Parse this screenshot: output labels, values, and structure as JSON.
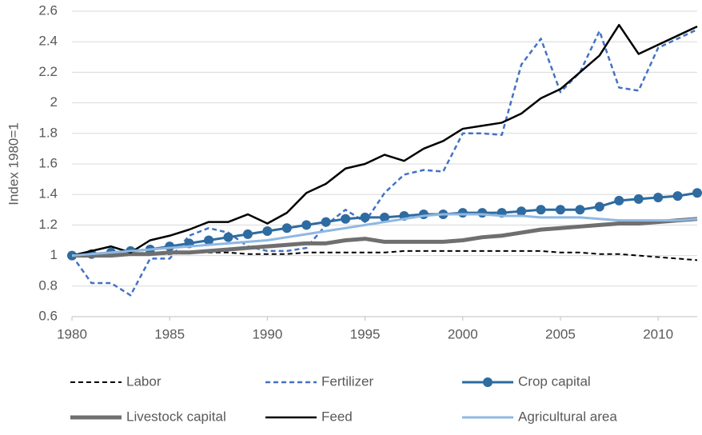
{
  "chart_data": {
    "type": "line",
    "y_label": "Index 1980=1",
    "x": [
      1980,
      1981,
      1982,
      1983,
      1984,
      1985,
      1986,
      1987,
      1988,
      1989,
      1990,
      1991,
      1992,
      1993,
      1994,
      1995,
      1996,
      1997,
      1998,
      1999,
      2000,
      2001,
      2002,
      2003,
      2004,
      2005,
      2006,
      2007,
      2008,
      2009,
      2010,
      2011,
      2012
    ],
    "xlim": [
      1980,
      2012
    ],
    "xticks": [
      1980,
      1985,
      1990,
      1995,
      2000,
      2005,
      2010
    ],
    "ylim": [
      0.6,
      2.6
    ],
    "yticks": [
      0.6,
      0.8,
      1,
      1.2,
      1.4,
      1.6,
      1.8,
      2,
      2.2,
      2.4,
      2.6
    ],
    "grid": true,
    "legend": "bottom",
    "series": [
      {
        "name": "Labor",
        "color": "#000000",
        "width": 2,
        "dash": true,
        "values": [
          1,
          1.01,
          1.01,
          1.01,
          1.01,
          1.01,
          1.02,
          1.02,
          1.02,
          1.01,
          1.01,
          1.01,
          1.02,
          1.02,
          1.02,
          1.02,
          1.02,
          1.03,
          1.03,
          1.03,
          1.03,
          1.03,
          1.03,
          1.03,
          1.03,
          1.02,
          1.02,
          1.01,
          1.01,
          1.0,
          0.99,
          0.98,
          0.97
        ]
      },
      {
        "name": "Fertilizer",
        "color": "#4472c4",
        "width": 2.5,
        "dash": true,
        "values": [
          1,
          0.82,
          0.82,
          0.74,
          0.98,
          0.98,
          1.13,
          1.18,
          1.15,
          1.06,
          1.03,
          1.03,
          1.05,
          1.2,
          1.3,
          1.22,
          1.41,
          1.53,
          1.56,
          1.55,
          1.8,
          1.8,
          1.79,
          2.25,
          2.42,
          2.07,
          2.2,
          2.47,
          2.1,
          2.08,
          2.36,
          2.42,
          2.48
        ]
      },
      {
        "name": "Crop capital",
        "color": "#2e6ba0",
        "width": 3,
        "marker": "circle",
        "values": [
          1,
          1.01,
          1.02,
          1.03,
          1.04,
          1.06,
          1.08,
          1.1,
          1.12,
          1.14,
          1.16,
          1.18,
          1.2,
          1.22,
          1.24,
          1.25,
          1.25,
          1.26,
          1.27,
          1.27,
          1.28,
          1.28,
          1.28,
          1.29,
          1.3,
          1.3,
          1.3,
          1.32,
          1.36,
          1.37,
          1.38,
          1.39,
          1.41
        ]
      },
      {
        "name": "Livestock capital",
        "color": "#6f6f6f",
        "width": 5,
        "values": [
          1,
          1.0,
          1.0,
          1.01,
          1.01,
          1.02,
          1.02,
          1.03,
          1.04,
          1.05,
          1.06,
          1.07,
          1.08,
          1.08,
          1.1,
          1.11,
          1.09,
          1.09,
          1.09,
          1.09,
          1.1,
          1.12,
          1.13,
          1.15,
          1.17,
          1.18,
          1.19,
          1.2,
          1.21,
          1.21,
          1.22,
          1.23,
          1.24
        ]
      },
      {
        "name": "Feed",
        "color": "#000000",
        "width": 2.5,
        "values": [
          1,
          1.03,
          1.06,
          1.02,
          1.1,
          1.13,
          1.17,
          1.22,
          1.22,
          1.27,
          1.21,
          1.28,
          1.41,
          1.47,
          1.57,
          1.6,
          1.66,
          1.62,
          1.7,
          1.75,
          1.83,
          1.85,
          1.87,
          1.93,
          2.03,
          2.09,
          2.2,
          2.31,
          2.51,
          2.32,
          2.38,
          2.44,
          2.5
        ]
      },
      {
        "name": "Agricultural area",
        "color": "#8fb8e2",
        "width": 3,
        "values": [
          1,
          1.01,
          1.02,
          1.03,
          1.04,
          1.05,
          1.06,
          1.07,
          1.08,
          1.09,
          1.1,
          1.12,
          1.14,
          1.16,
          1.18,
          1.2,
          1.22,
          1.24,
          1.26,
          1.27,
          1.27,
          1.27,
          1.26,
          1.26,
          1.25,
          1.25,
          1.25,
          1.24,
          1.23,
          1.23,
          1.23,
          1.23,
          1.24
        ]
      }
    ]
  }
}
